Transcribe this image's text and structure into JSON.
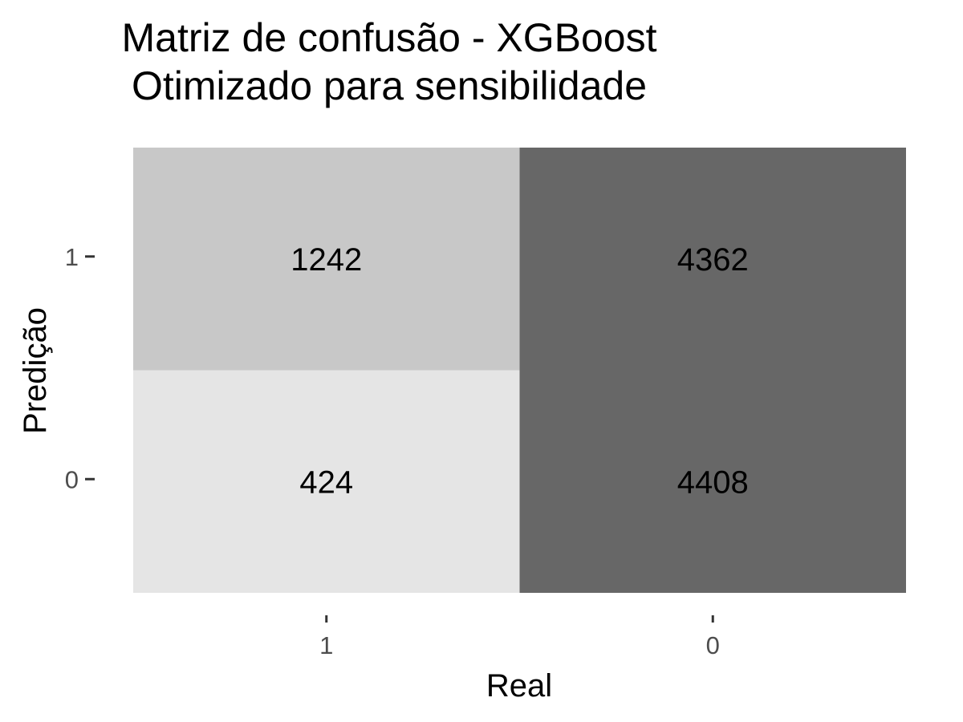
{
  "chart_data": {
    "type": "heatmap",
    "title": "Matriz de confusão - XGBoost",
    "subtitle": "Otimizado para sensibilidade",
    "xlabel": "Real",
    "ylabel": "Predição",
    "x_categories": [
      "1",
      "0"
    ],
    "y_categories": [
      "1",
      "0"
    ],
    "cells": [
      {
        "x": "1",
        "y": "1",
        "value": 1242,
        "color": "#c8c8c8"
      },
      {
        "x": "0",
        "y": "1",
        "value": 4362,
        "color": "#676767"
      },
      {
        "x": "1",
        "y": "0",
        "value": 424,
        "color": "#e5e5e5"
      },
      {
        "x": "0",
        "y": "0",
        "value": 4408,
        "color": "#676767"
      }
    ],
    "grid": false,
    "legend": "none"
  }
}
